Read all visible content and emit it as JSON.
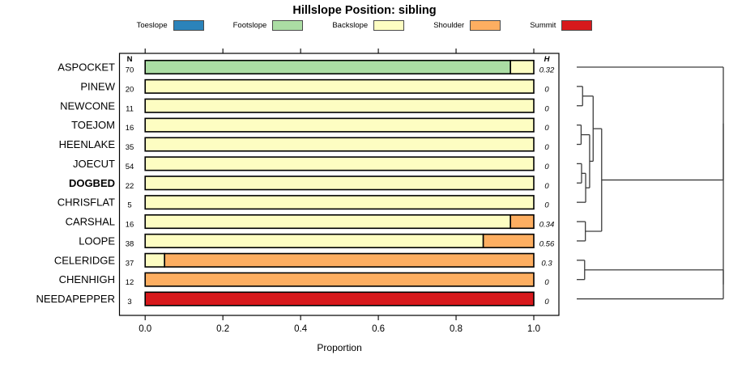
{
  "chart_data": {
    "type": "bar",
    "orientation": "horizontal",
    "stacked": true,
    "title": "Hillslope Position: sibling",
    "xlabel": "Proportion",
    "xlim": [
      0,
      1
    ],
    "xtick_labels": [
      "0.0",
      "0.2",
      "0.4",
      "0.6",
      "0.8",
      "1.0"
    ],
    "n_header": "N",
    "h_header": "H",
    "categories": [
      "ASPOCKET",
      "PINEW",
      "NEWCONE",
      "TOEJOM",
      "HEENLAKE",
      "JOECUT",
      "DOGBED",
      "CHRISFLAT",
      "CARSHAL",
      "LOOPE",
      "CELERIDGE",
      "CHENHIGH",
      "NEEDAPEPPER"
    ],
    "bold_categories": [
      "DOGBED"
    ],
    "n_values": [
      70,
      20,
      11,
      16,
      35,
      54,
      22,
      5,
      16,
      38,
      37,
      12,
      3
    ],
    "h_values": [
      "0.32",
      "0",
      "0",
      "0",
      "0",
      "0",
      "0",
      "0",
      "0.34",
      "0.56",
      "0.3",
      "0",
      "0"
    ],
    "series": [
      {
        "name": "Toeslope",
        "color": "#2B83BA",
        "values": [
          0,
          0,
          0,
          0,
          0,
          0,
          0,
          0,
          0,
          0,
          0,
          0,
          0
        ]
      },
      {
        "name": "Footslope",
        "color": "#ABDDA4",
        "values": [
          0.94,
          0,
          0,
          0,
          0,
          0,
          0,
          0,
          0,
          0,
          0,
          0,
          0
        ]
      },
      {
        "name": "Backslope",
        "color": "#FDFDC2",
        "values": [
          0.06,
          1,
          1,
          1,
          1,
          1,
          1,
          1,
          0.94,
          0.87,
          0.05,
          0,
          0
        ]
      },
      {
        "name": "Shoulder",
        "color": "#FDAE61",
        "values": [
          0,
          0,
          0,
          0,
          0,
          0,
          0,
          0,
          0.06,
          0.13,
          0.95,
          1,
          0
        ]
      },
      {
        "name": "Summit",
        "color": "#D7191C",
        "values": [
          0,
          0,
          0,
          0,
          0,
          0,
          0,
          0,
          0,
          0,
          0,
          0,
          1
        ]
      }
    ],
    "legend_position": "top",
    "dendrogram": {
      "side": "right",
      "height_range": [
        0,
        1
      ],
      "merges": [
        {
          "a": 1,
          "b": 2,
          "h": 0.04
        },
        {
          "a": 3,
          "b": 4,
          "h": 0.03
        },
        {
          "a": 5,
          "b": 6,
          "h": 0.033
        },
        {
          "a": 15,
          "b": 7,
          "h": 0.061
        },
        {
          "a": 14,
          "b": 16,
          "h": 0.088
        },
        {
          "a": 13,
          "b": 17,
          "h": 0.112
        },
        {
          "a": 8,
          "b": 9,
          "h": 0.059
        },
        {
          "a": 18,
          "b": 19,
          "h": 0.17
        },
        {
          "a": 10,
          "b": 11,
          "h": 0.054
        },
        {
          "a": 0,
          "b": 20,
          "h": 1.0
        },
        {
          "a": 21,
          "b": 12,
          "h": 1.0
        },
        {
          "a": 22,
          "b": 23,
          "h": 1.0
        }
      ]
    }
  }
}
